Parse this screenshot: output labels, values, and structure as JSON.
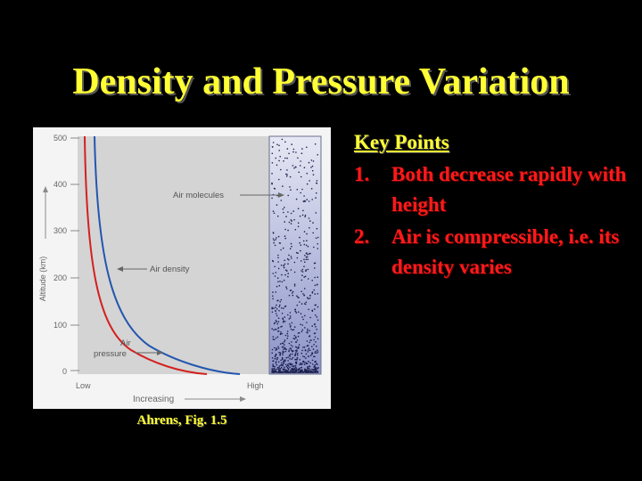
{
  "slide": {
    "title": "Density and Pressure Variation",
    "caption": "Ahrens, Fig. 1.5"
  },
  "key_points": {
    "heading": "Key Points",
    "items": [
      {
        "number": "1.",
        "text": "Both decrease rapidly with height"
      },
      {
        "number": "2.",
        "text": "Air is compressible, i.e. its density varies"
      }
    ]
  },
  "figure": {
    "y_axis_label": "Altitude (km)",
    "y_ticks": [
      "500",
      "400",
      "300",
      "200",
      "100",
      "0"
    ],
    "x_low_label": "Low",
    "x_high_label": "High",
    "x_axis_label": "Increasing",
    "label_air_molecules": "Air molecules",
    "label_air_density": "Air density",
    "label_air_pressure_line1": "Air",
    "label_air_pressure_line2": "pressure",
    "colors": {
      "density_curve": "#2455b0",
      "pressure_curve": "#d42020",
      "plot_background": "#d4d4d4",
      "column_top": "#e6e8f4",
      "column_bottom": "#8c93c8"
    }
  }
}
